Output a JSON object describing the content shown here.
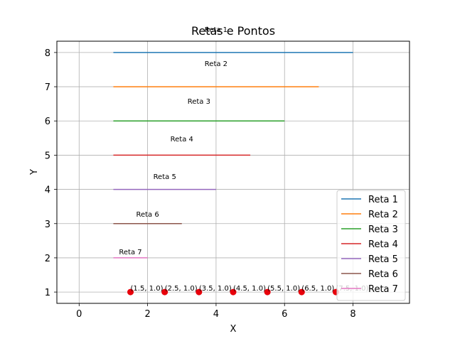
{
  "chart_data": {
    "type": "line",
    "title": "Retas e Pontos",
    "xlabel": "X",
    "ylabel": "Y",
    "xlim": [
      -0.65,
      9.65
    ],
    "ylim": [
      0.67,
      8.33
    ],
    "xticks": [
      0,
      2,
      4,
      6,
      8
    ],
    "yticks": [
      1,
      2,
      3,
      4,
      5,
      6,
      7,
      8
    ],
    "grid": true,
    "legend_position": "lower right",
    "series": [
      {
        "name": "Reta 1",
        "color": "#1f77b4",
        "x": [
          1,
          8
        ],
        "y": [
          8,
          8
        ],
        "label": "Reta 1",
        "label_at": [
          4,
          8.6
        ]
      },
      {
        "name": "Reta 2",
        "color": "#ff7f0e",
        "x": [
          1,
          7
        ],
        "y": [
          7,
          7
        ],
        "label": "Reta 2",
        "label_at": [
          4,
          7.6
        ]
      },
      {
        "name": "Reta 3",
        "color": "#2ca02c",
        "x": [
          1,
          6
        ],
        "y": [
          6,
          6
        ],
        "label": "Reta 3",
        "label_at": [
          3.5,
          6.5
        ]
      },
      {
        "name": "Reta 4",
        "color": "#d62728",
        "x": [
          1,
          5
        ],
        "y": [
          5,
          5
        ],
        "label": "Reta 4",
        "label_at": [
          3,
          5.4
        ]
      },
      {
        "name": "Reta 5",
        "color": "#9467bd",
        "x": [
          1,
          4
        ],
        "y": [
          4,
          4
        ],
        "label": "Reta 5",
        "label_at": [
          2.5,
          4.3
        ]
      },
      {
        "name": "Reta 6",
        "color": "#8c564b",
        "x": [
          1,
          3
        ],
        "y": [
          3,
          3
        ],
        "label": "Reta 6",
        "label_at": [
          2,
          3.2
        ]
      },
      {
        "name": "Reta 7",
        "color": "#e377c2",
        "x": [
          1,
          2
        ],
        "y": [
          2,
          2
        ],
        "label": "Reta 7",
        "label_at": [
          1.5,
          2.1
        ]
      }
    ],
    "points": {
      "color": "#e8000b",
      "x": [
        1.5,
        2.5,
        3.5,
        4.5,
        5.5,
        6.5,
        7.5
      ],
      "y": [
        1.0,
        1.0,
        1.0,
        1.0,
        1.0,
        1.0,
        1.0
      ],
      "labels": [
        "(1.5, 1.0)",
        "(2.5, 1.0)",
        "(3.5, 1.0)",
        "(4.5, 1.0)",
        "(5.5, 1.0)",
        "(6.5, 1.0)",
        "(7.5, 1.0)"
      ]
    }
  }
}
